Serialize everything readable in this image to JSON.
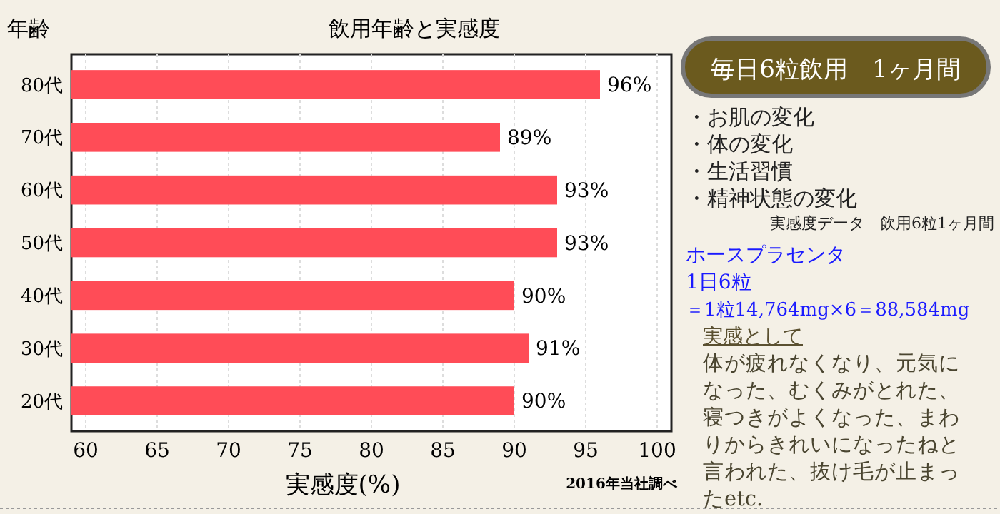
{
  "chart_data": [
    {
      "type": "bar",
      "orientation": "horizontal",
      "title": "飲用年齢と実感度",
      "ylabel": "年齢",
      "xlabel": "実感度(%)",
      "categories": [
        "80代",
        "70代",
        "60代",
        "50代",
        "40代",
        "30代",
        "20代"
      ],
      "values": [
        96,
        89,
        93,
        93,
        90,
        91,
        90
      ],
      "value_labels": [
        "96%",
        "89%",
        "93%",
        "93%",
        "90%",
        "91%",
        "90%"
      ],
      "color": "#ff4c57",
      "xlim": [
        59,
        101
      ],
      "xticks": [
        60,
        65,
        70,
        75,
        80,
        85,
        90,
        95,
        100
      ],
      "grid": "x",
      "annotations": [
        "2016年当社調べ"
      ]
    },
    {
      "type": "other",
      "title": "毎日6粒飲用　1ヶ月間",
      "annotations": [
        "・お肌の変化",
        "・体の変化",
        "・生活習慣",
        "・精神状態の変化",
        "実感度データ　飲用6粒1ヶ月間",
        "ホースプラセンタ",
        "1日6粒",
        "＝1粒14,764mg×6＝88,584mg",
        "実感として",
        "体が疲れなくなり、元気になった、むくみがとれた、寝つきがよくなった、まわりからきれいになったねと言われた、抜け毛が止まったetc."
      ]
    }
  ]
}
